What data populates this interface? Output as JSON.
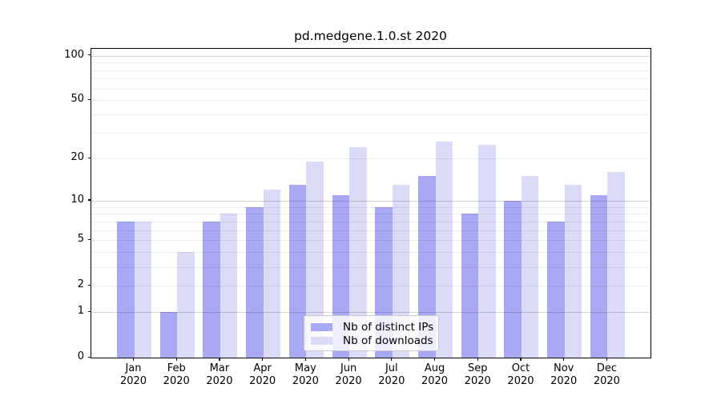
{
  "title": "pd.medgene.1.0.st 2020",
  "colors": {
    "distinct_ips": "#a8a8f4",
    "downloads": "#dbdbf8",
    "grid_minor": "rgba(0,0,0,0.075)",
    "grid_major": "rgba(0,0,0,0.16)",
    "axis": "#000000",
    "legend_border": "#cccccc"
  },
  "legend": {
    "items": [
      {
        "label": "Nb of distinct IPs",
        "color_key": "distinct_ips"
      },
      {
        "label": "Nb of downloads",
        "color_key": "downloads"
      }
    ]
  },
  "y_axis": {
    "tick_labels": [
      "100",
      "50",
      "20",
      "10",
      "5",
      "2",
      "1",
      "0"
    ],
    "tick_values": [
      100,
      50,
      20,
      10,
      5,
      2,
      1,
      0
    ],
    "minor_grid_values": [
      2,
      3,
      4,
      5,
      6,
      7,
      8,
      9,
      20,
      30,
      40,
      50,
      60,
      70,
      80,
      90
    ],
    "major_grid_values": [
      1,
      10,
      100
    ]
  },
  "x_axis": {
    "months": [
      "Jan",
      "Feb",
      "Mar",
      "Apr",
      "May",
      "Jun",
      "Jul",
      "Aug",
      "Sep",
      "Oct",
      "Nov",
      "Dec"
    ],
    "year_line": "2020"
  },
  "chart_data": {
    "type": "bar",
    "title": "pd.medgene.1.0.st 2020",
    "categories": [
      "Jan 2020",
      "Feb 2020",
      "Mar 2020",
      "Apr 2020",
      "May 2020",
      "Jun 2020",
      "Jul 2020",
      "Aug 2020",
      "Sep 2020",
      "Oct 2020",
      "Nov 2020",
      "Dec 2020"
    ],
    "series": [
      {
        "name": "Nb of distinct IPs",
        "values": [
          7,
          1,
          7,
          9,
          13,
          11,
          9,
          15,
          8,
          10,
          7,
          11
        ]
      },
      {
        "name": "Nb of downloads",
        "values": [
          7,
          4,
          8,
          12,
          19,
          24,
          13,
          26,
          25,
          15,
          13,
          16
        ]
      }
    ],
    "ylabel": "",
    "xlabel": "",
    "yscale": "log10(1+v)",
    "ylim": [
      0,
      112
    ],
    "grid": "both",
    "legend_position": "lower-center"
  }
}
